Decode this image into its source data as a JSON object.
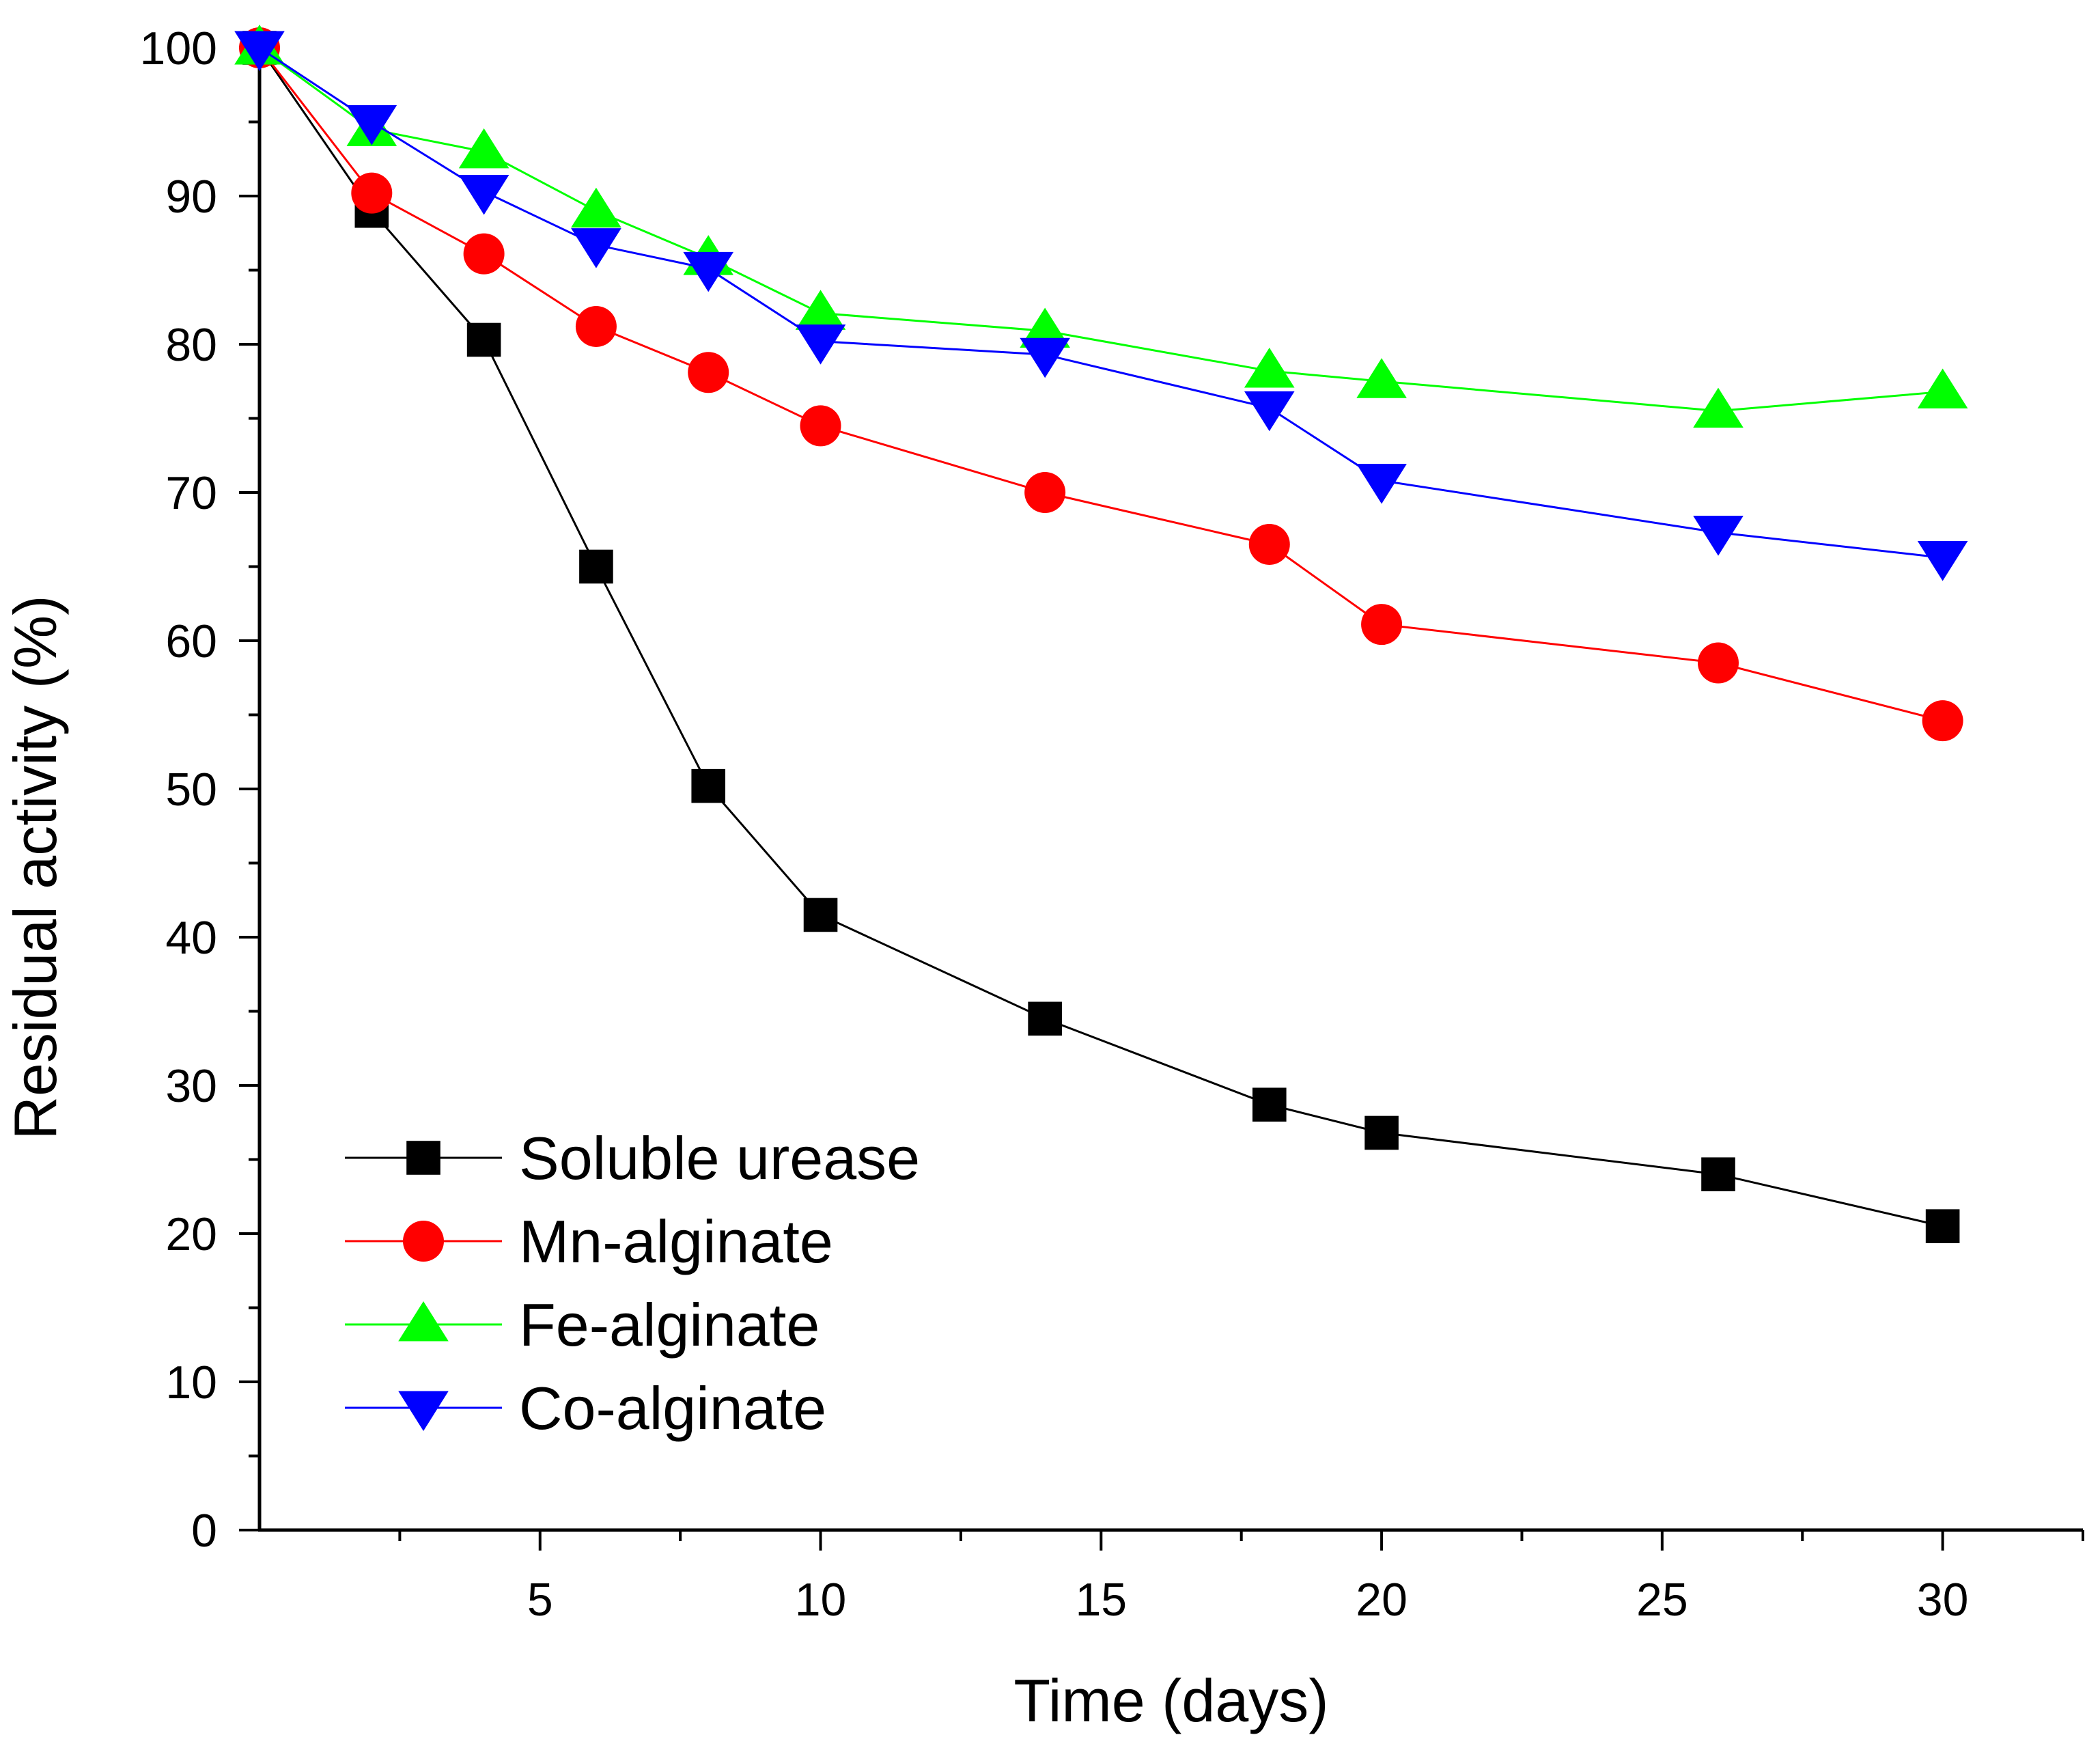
{
  "chart_data": {
    "type": "line",
    "title": "",
    "xlabel": "Time (days)",
    "ylabel": "Residual activity (%)",
    "xlim": [
      0,
      32.5
    ],
    "ylim": [
      0,
      100
    ],
    "x_ticks": [
      5,
      10,
      15,
      20,
      25,
      30
    ],
    "x_tick_labels": [
      "5",
      "10",
      "15",
      "20",
      "25",
      "30"
    ],
    "x_minor_ticks": [
      2.5,
      7.5,
      12.5,
      17.5,
      22.5,
      27.5,
      32.5
    ],
    "y_ticks": [
      0,
      10,
      20,
      30,
      40,
      50,
      60,
      70,
      80,
      90,
      100
    ],
    "y_tick_labels": [
      "0",
      "10",
      "20",
      "30",
      "40",
      "50",
      "60",
      "70",
      "80",
      "90",
      "100"
    ],
    "y_minor_ticks": [
      5,
      15,
      25,
      35,
      45,
      55,
      65,
      75,
      85,
      95
    ],
    "grid": false,
    "legend_position": "bottom-left",
    "x": [
      0,
      2,
      4,
      6,
      8,
      10,
      14,
      18,
      20,
      26,
      30
    ],
    "series": [
      {
        "name": "Soluble urease",
        "marker": "square",
        "color": "#000000",
        "values": [
          100,
          89,
          80.3,
          65,
          50.2,
          41.5,
          34.5,
          28.7,
          26.8,
          24,
          20.5
        ]
      },
      {
        "name": "Mn-alginate",
        "marker": "circle",
        "color": "#ff0000",
        "values": [
          100,
          90.2,
          86.1,
          81.2,
          78.1,
          74.5,
          70,
          66.5,
          61.1,
          58.5,
          54.6
        ]
      },
      {
        "name": "Fe-alginate",
        "marker": "triangle-up",
        "color": "#00ff00",
        "values": [
          100,
          94.5,
          93,
          89,
          85.8,
          82.1,
          80.9,
          78.2,
          77.5,
          75.5,
          76.8
        ]
      },
      {
        "name": "Co-alginate",
        "marker": "triangle-down",
        "color": "#0000ff",
        "values": [
          100,
          95,
          90.3,
          86.7,
          85.1,
          80.2,
          79.3,
          75.7,
          70.8,
          67.3,
          65.6
        ]
      }
    ]
  }
}
